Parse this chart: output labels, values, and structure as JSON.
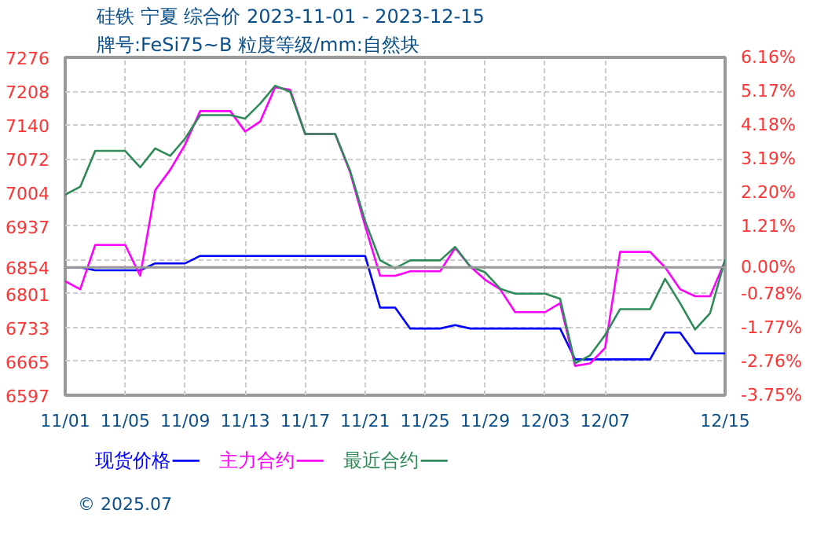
{
  "chart_data": {
    "type": "line",
    "title": "硅铁 宁夏 综合价 2023-11-01 - 2023-12-15",
    "subtitle": "牌号:FeSi75~B 粒度等级/mm:自然块",
    "annotations": [
      "© 2025.07"
    ],
    "series": [
      {
        "name": "现货价格",
        "color": "#0000ff",
        "x": [
          "2023-11-01",
          "2023-11-02",
          "2023-11-03",
          "2023-11-06",
          "2023-11-07",
          "2023-11-09",
          "2023-11-10",
          "2023-11-21",
          "2023-11-22",
          "2023-11-23",
          "2023-11-24",
          "2023-11-26",
          "2023-11-27",
          "2023-11-28",
          "2023-12-04",
          "2023-12-05",
          "2023-12-10",
          "2023-12-11",
          "2023-12-12",
          "2023-12-13",
          "2023-12-15"
        ],
        "values": [
          6854,
          6854,
          6848,
          6848,
          6862,
          6862,
          6877,
          6877,
          6773,
          6773,
          6731,
          6731,
          6738,
          6731,
          6731,
          6669,
          6669,
          6723,
          6723,
          6681,
          6681
        ]
      },
      {
        "name": "主力合约",
        "color": "#ff00ff",
        "x": [
          "2023-11-01",
          "2023-11-02",
          "2023-11-03",
          "2023-11-05",
          "2023-11-06",
          "2023-11-07",
          "2023-11-08",
          "2023-11-09",
          "2023-11-10",
          "2023-11-12",
          "2023-11-13",
          "2023-11-14",
          "2023-11-15",
          "2023-11-16",
          "2023-11-17",
          "2023-11-19",
          "2023-11-20",
          "2023-11-21",
          "2023-11-22",
          "2023-11-23",
          "2023-11-24",
          "2023-11-26",
          "2023-11-27",
          "2023-11-28",
          "2023-11-29",
          "2023-11-30",
          "2023-12-01",
          "2023-12-03",
          "2023-12-04",
          "2023-12-05",
          "2023-12-06",
          "2023-12-07",
          "2023-12-08",
          "2023-12-10",
          "2023-12-11",
          "2023-12-12",
          "2023-12-13",
          "2023-12-14",
          "2023-12-15"
        ],
        "values": [
          6826,
          6810,
          6899,
          6899,
          6837,
          7009,
          7050,
          7101,
          7168,
          7168,
          7127,
          7147,
          7216,
          7211,
          7122,
          7122,
          7045,
          6937,
          6837,
          6837,
          6846,
          6846,
          6893,
          6856,
          6829,
          6810,
          6764,
          6764,
          6782,
          6656,
          6661,
          6692,
          6885,
          6885,
          6854,
          6810,
          6796,
          6796,
          6867
        ]
      },
      {
        "name": "最近合约",
        "color": "#2e8b57",
        "x": [
          "2023-11-01",
          "2023-11-02",
          "2023-11-03",
          "2023-11-05",
          "2023-11-06",
          "2023-11-07",
          "2023-11-08",
          "2023-11-09",
          "2023-11-10",
          "2023-11-12",
          "2023-11-13",
          "2023-11-14",
          "2023-11-15",
          "2023-11-16",
          "2023-11-17",
          "2023-11-19",
          "2023-11-20",
          "2023-11-21",
          "2023-11-22",
          "2023-11-23",
          "2023-11-24",
          "2023-11-26",
          "2023-11-27",
          "2023-11-28",
          "2023-11-29",
          "2023-11-30",
          "2023-12-01",
          "2023-12-03",
          "2023-12-04",
          "2023-12-05",
          "2023-12-06",
          "2023-12-07",
          "2023-12-08",
          "2023-12-10",
          "2023-12-11",
          "2023-12-12",
          "2023-12-13",
          "2023-12-14",
          "2023-12-15"
        ],
        "values": [
          7000,
          7016,
          7088,
          7088,
          7055,
          7093,
          7078,
          7113,
          7160,
          7160,
          7153,
          7183,
          7219,
          7207,
          7122,
          7122,
          7048,
          6947,
          6868,
          6852,
          6868,
          6868,
          6895,
          6856,
          6844,
          6811,
          6801,
          6801,
          6791,
          6661,
          6677,
          6718,
          6770,
          6770,
          6831,
          6782,
          6729,
          6762,
          6870
        ]
      }
    ],
    "xlim": [
      "2023-11-01",
      "2023-12-15"
    ],
    "xticks": [
      {
        "value": "2023-11-01",
        "label": "11/01"
      },
      {
        "value": "2023-11-05",
        "label": "11/05"
      },
      {
        "value": "2023-11-09",
        "label": "11/09"
      },
      {
        "value": "2023-11-13",
        "label": "11/13"
      },
      {
        "value": "2023-11-17",
        "label": "11/17"
      },
      {
        "value": "2023-11-21",
        "label": "11/21"
      },
      {
        "value": "2023-11-25",
        "label": "11/25"
      },
      {
        "value": "2023-11-29",
        "label": "11/29"
      },
      {
        "value": "2023-12-03",
        "label": "12/03"
      },
      {
        "value": "2023-12-07",
        "label": "12/07"
      },
      {
        "value": "2023-12-15",
        "label": "12/15"
      }
    ],
    "ylim": [
      6597,
      7276
    ],
    "yticks": [
      6597,
      6665,
      6733,
      6801,
      6854,
      {
        "value": 6869,
        "label": null
      },
      6937,
      7004,
      7072,
      7140,
      7208,
      7276
    ],
    "y2lim": [
      -3.75,
      6.16
    ],
    "y2ticks": [
      {
        "value": -3.75,
        "label": "-3.75%"
      },
      {
        "value": -2.76,
        "label": "-2.76%"
      },
      {
        "value": -1.77,
        "label": "-1.77%"
      },
      {
        "value": -0.78,
        "label": "-0.78%"
      },
      {
        "value": 0,
        "label": "0.00%"
      },
      {
        "value": 1.21,
        "label": "1.21%"
      },
      {
        "value": 2.2,
        "label": "2.20%"
      },
      {
        "value": 3.19,
        "label": "3.19%"
      },
      {
        "value": 4.18,
        "label": "4.18%"
      },
      {
        "value": 5.17,
        "label": "5.17%"
      },
      {
        "value": 6.16,
        "label": "6.16%"
      }
    ],
    "ref_lines": [
      {
        "axis": "y",
        "value": 6854,
        "color": "#999999"
      }
    ],
    "grid": true,
    "legend": "bottom"
  }
}
